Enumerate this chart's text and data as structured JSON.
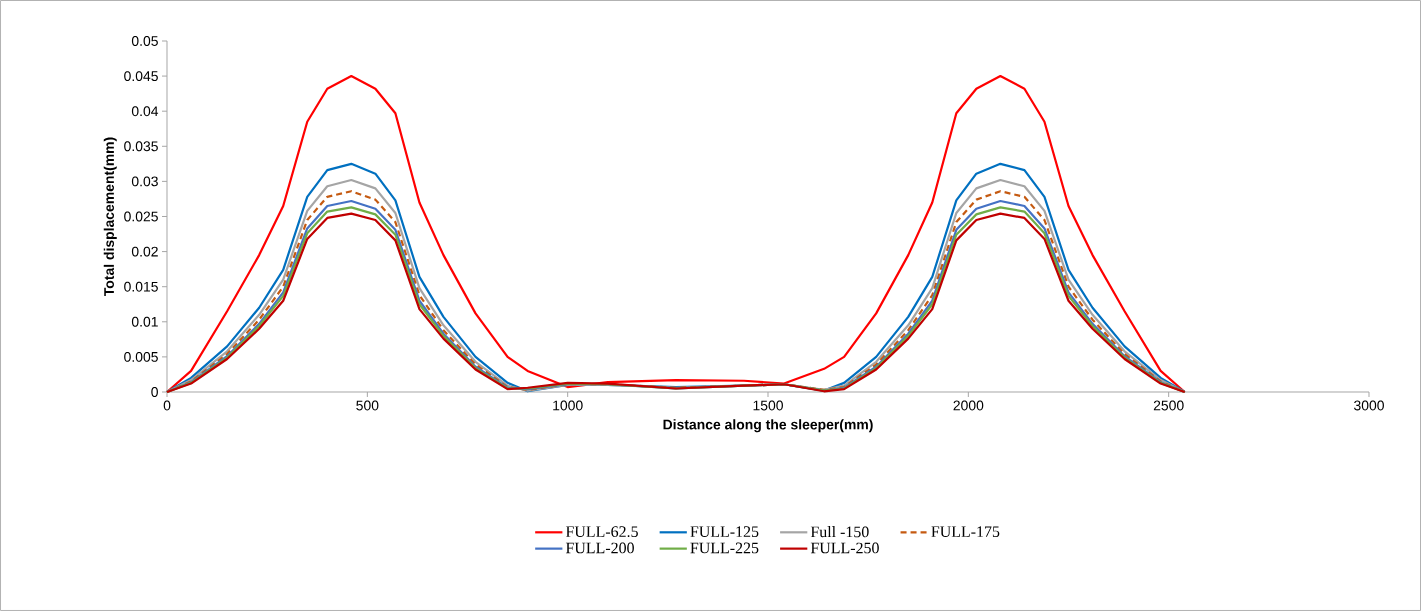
{
  "chart_data": {
    "type": "line",
    "xlabel": "Distance along the sleeper(mm)",
    "ylabel": "Total displacement(mm)",
    "x": [
      0,
      60,
      150,
      230,
      290,
      350,
      400,
      460,
      520,
      570,
      630,
      690,
      770,
      850,
      900,
      1000,
      1100,
      1270,
      1440,
      1540,
      1640,
      1690,
      1770,
      1850,
      1910,
      1970,
      2020,
      2080,
      2140,
      2190,
      2250,
      2310,
      2390,
      2480,
      2540
    ],
    "xlim": [
      0,
      3000
    ],
    "xticks": [
      0,
      500,
      1000,
      1500,
      2000,
      2500,
      3000
    ],
    "ylim": [
      0,
      0.05
    ],
    "yticks": [
      0,
      0.005,
      0.01,
      0.015,
      0.02,
      0.025,
      0.03,
      0.035,
      0.04,
      0.045,
      0.05
    ],
    "grid": false,
    "legend": "bottom",
    "series": [
      {
        "name": "FULL-62.5",
        "color": "#ff0000",
        "line_style": "solid",
        "values": [
          0,
          0.003,
          0.0115,
          0.0195,
          0.0265,
          0.0385,
          0.0432,
          0.045,
          0.0432,
          0.0397,
          0.027,
          0.0195,
          0.0112,
          0.005,
          0.003,
          0.0007,
          0.0014,
          0.0017,
          0.0016,
          0.0012,
          0.0033,
          0.005,
          0.0112,
          0.0195,
          0.027,
          0.0397,
          0.0432,
          0.045,
          0.0432,
          0.0385,
          0.0265,
          0.0195,
          0.0115,
          0.003,
          0
        ]
      },
      {
        "name": "FULL-125",
        "color": "#0070c0",
        "line_style": "solid",
        "values": [
          0,
          0.002,
          0.0065,
          0.012,
          0.0174,
          0.0278,
          0.0316,
          0.0325,
          0.0311,
          0.0273,
          0.0164,
          0.0107,
          0.005,
          0.0013,
          0.0001,
          0.001,
          0.001,
          0.0007,
          0.0009,
          0.0011,
          0.0002,
          0.0013,
          0.005,
          0.0107,
          0.0164,
          0.0273,
          0.0311,
          0.0325,
          0.0316,
          0.0278,
          0.0174,
          0.012,
          0.0065,
          0.002,
          0
        ]
      },
      {
        "name": "Full -150",
        "color": "#a5a5a5",
        "line_style": "solid",
        "values": [
          0,
          0.0017,
          0.0058,
          0.011,
          0.016,
          0.0258,
          0.0293,
          0.0302,
          0.029,
          0.0255,
          0.0148,
          0.0095,
          0.0043,
          0.0009,
          0.0002,
          0.001,
          0.001,
          0.0006,
          0.0009,
          0.0011,
          0.0003,
          0.0009,
          0.0043,
          0.0095,
          0.0148,
          0.0255,
          0.029,
          0.0302,
          0.0293,
          0.0258,
          0.016,
          0.011,
          0.0058,
          0.0017,
          0
        ]
      },
      {
        "name": "FULL-175",
        "color": "#c55a11",
        "line_style": "dashed",
        "values": [
          0,
          0.0015,
          0.0054,
          0.0103,
          0.015,
          0.0245,
          0.0278,
          0.0286,
          0.0274,
          0.0242,
          0.0138,
          0.0088,
          0.0039,
          0.0007,
          0.0003,
          0.0011,
          0.0011,
          0.0006,
          0.0009,
          0.0011,
          0.0003,
          0.0007,
          0.0039,
          0.0088,
          0.0138,
          0.0242,
          0.0274,
          0.0286,
          0.0278,
          0.0245,
          0.015,
          0.0103,
          0.0054,
          0.0015,
          0
        ]
      },
      {
        "name": "FULL-200",
        "color": "#4472c4",
        "line_style": "solid",
        "values": [
          0,
          0.0014,
          0.0051,
          0.0097,
          0.0142,
          0.0233,
          0.0265,
          0.0272,
          0.0261,
          0.0231,
          0.013,
          0.0083,
          0.0036,
          0.0006,
          0.0004,
          0.0011,
          0.0011,
          0.0005,
          0.0009,
          0.0011,
          0.0002,
          0.0006,
          0.0036,
          0.0083,
          0.013,
          0.0231,
          0.0261,
          0.0272,
          0.0265,
          0.0233,
          0.0142,
          0.0097,
          0.0051,
          0.0014,
          0
        ]
      },
      {
        "name": "FULL-225",
        "color": "#70ad47",
        "line_style": "solid",
        "values": [
          0,
          0.0013,
          0.0049,
          0.0094,
          0.0137,
          0.0226,
          0.0257,
          0.0263,
          0.0253,
          0.0224,
          0.0125,
          0.008,
          0.0034,
          0.0005,
          0.0005,
          0.0012,
          0.0011,
          0.0005,
          0.0009,
          0.0011,
          0.0002,
          0.0005,
          0.0034,
          0.008,
          0.0125,
          0.0224,
          0.0253,
          0.0263,
          0.0257,
          0.0226,
          0.0137,
          0.0094,
          0.0049,
          0.0013,
          0
        ]
      },
      {
        "name": "FULL-250",
        "color": "#c00000",
        "line_style": "solid",
        "values": [
          0,
          0.0012,
          0.0047,
          0.009,
          0.013,
          0.0218,
          0.0248,
          0.0254,
          0.0245,
          0.0216,
          0.0118,
          0.0076,
          0.0032,
          0.0004,
          0.0006,
          0.0013,
          0.0012,
          0.0005,
          0.0009,
          0.0011,
          0.0001,
          0.0004,
          0.0032,
          0.0076,
          0.0118,
          0.0216,
          0.0245,
          0.0254,
          0.0248,
          0.0218,
          0.013,
          0.009,
          0.0047,
          0.0012,
          0
        ]
      }
    ]
  }
}
